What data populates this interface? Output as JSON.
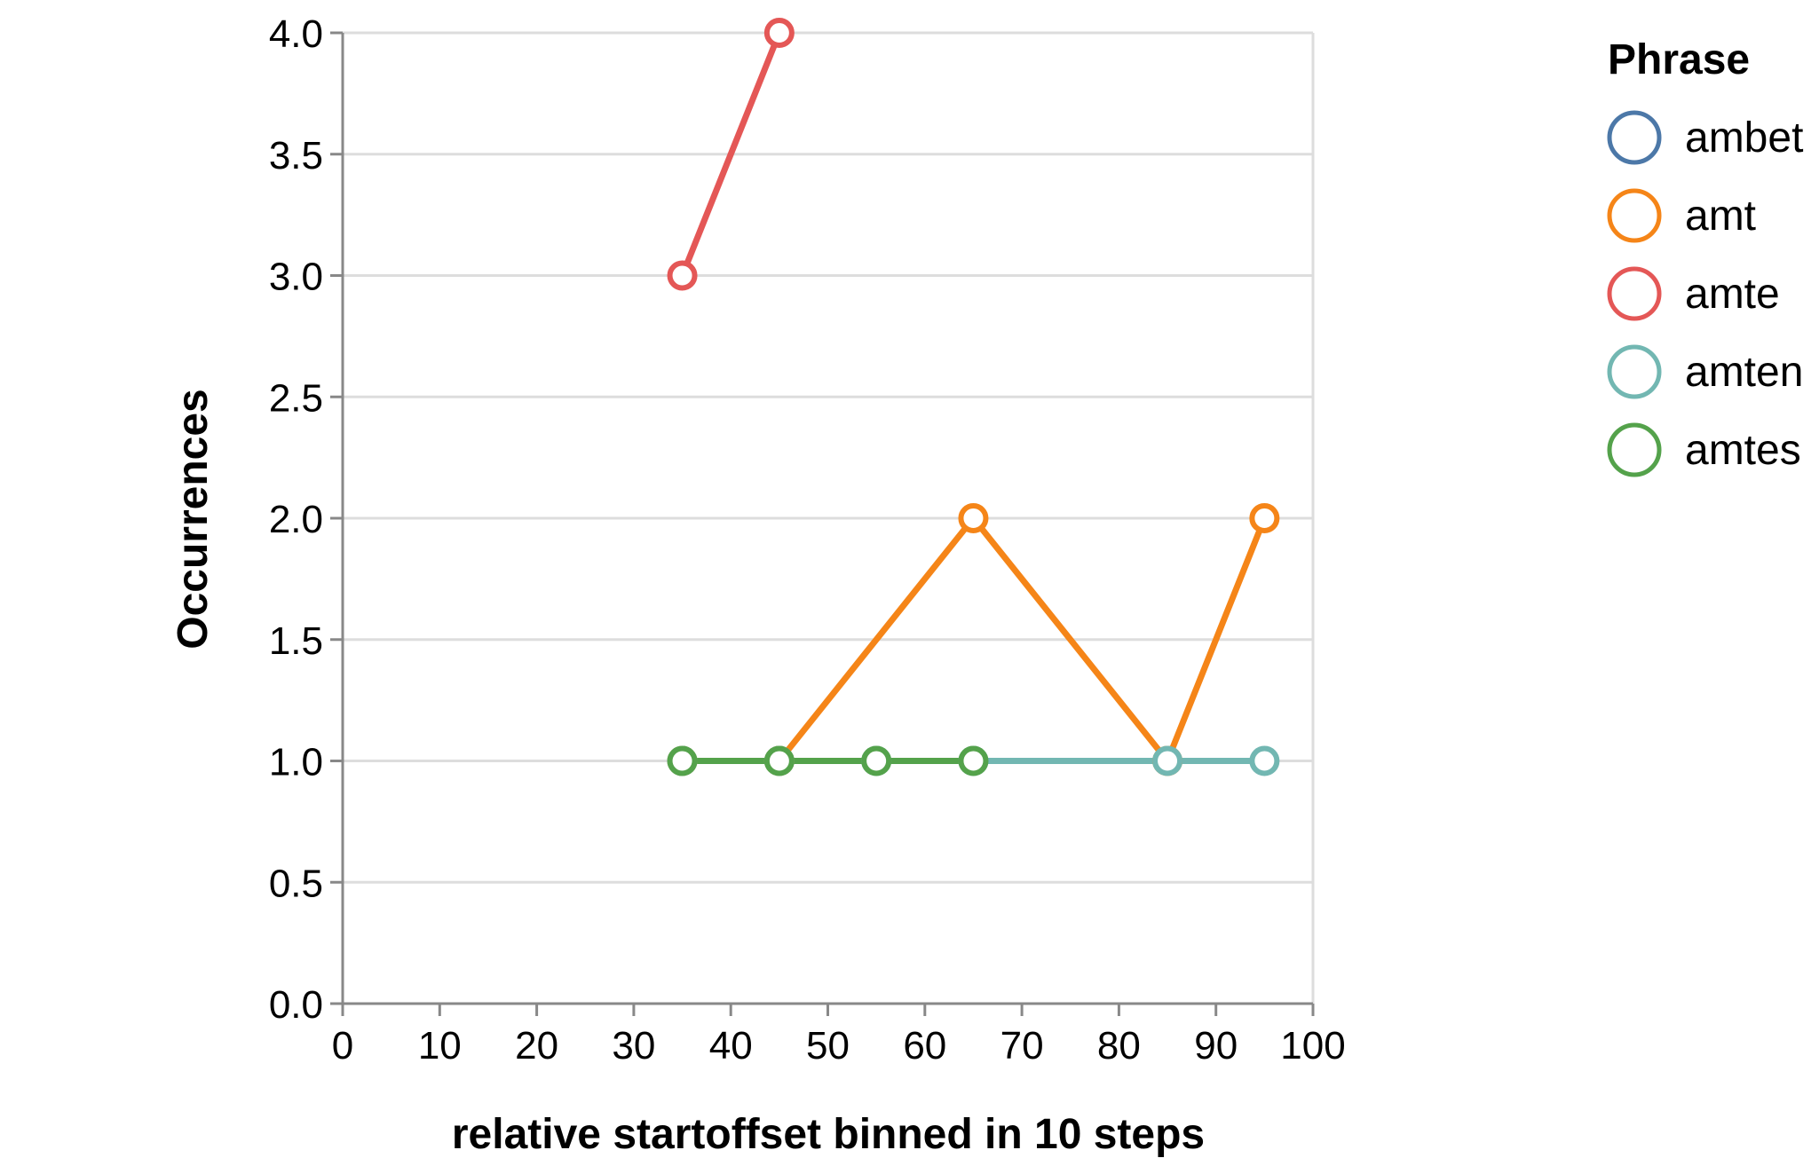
{
  "chart_data": {
    "type": "line",
    "xlabel": "relative startoffset binned in 10 steps",
    "ylabel": "Occurrences",
    "xlim": [
      0,
      100
    ],
    "ylim": [
      0,
      4
    ],
    "x_ticks": [
      "0",
      "10",
      "20",
      "30",
      "40",
      "50",
      "60",
      "70",
      "80",
      "90",
      "100"
    ],
    "y_ticks": [
      "0.0",
      "0.5",
      "1.0",
      "1.5",
      "2.0",
      "2.5",
      "3.0",
      "3.5",
      "4.0"
    ],
    "grid": true,
    "legend": {
      "title": "Phrase",
      "placement": "right"
    },
    "series": [
      {
        "name": "ambet",
        "color": "#4c78a8",
        "points": []
      },
      {
        "name": "amt",
        "color": "#f58518",
        "points": [
          [
            35,
            1
          ],
          [
            45,
            1
          ],
          [
            65,
            2
          ],
          [
            85,
            1
          ],
          [
            95,
            2
          ]
        ]
      },
      {
        "name": "amte",
        "color": "#e45756",
        "points": [
          [
            35,
            3
          ],
          [
            45,
            4
          ]
        ]
      },
      {
        "name": "amten",
        "color": "#72b7b2",
        "points": [
          [
            35,
            1
          ],
          [
            45,
            1
          ],
          [
            55,
            1
          ],
          [
            65,
            1
          ],
          [
            85,
            1
          ],
          [
            95,
            1
          ]
        ]
      },
      {
        "name": "amtes",
        "color": "#54a24b",
        "points": [
          [
            35,
            1
          ],
          [
            45,
            1
          ],
          [
            55,
            1
          ],
          [
            65,
            1
          ]
        ]
      }
    ]
  }
}
